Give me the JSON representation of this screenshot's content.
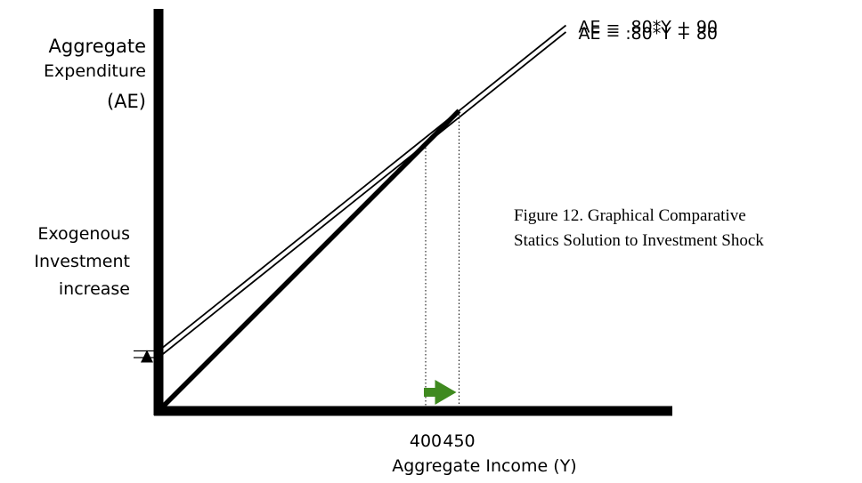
{
  "chart_data": {
    "type": "line",
    "title": "",
    "caption": [
      "Figure 12. Graphical Comparative",
      "Statics Solution to Investment Shock"
    ],
    "ylabel": [
      "Aggregate",
      "Expenditure",
      "(AE)"
    ],
    "xlabel": "Aggregate Income (Y)",
    "xlim": [
      0,
      600
    ],
    "ylim": [
      0,
      620
    ],
    "x_ticks": [
      {
        "value": 400,
        "label": "400"
      },
      {
        "value": 450,
        "label": "450"
      }
    ],
    "series": [
      {
        "name": "AE = .80*Y + 90",
        "intercept": 90,
        "slope": 0.8,
        "x": [
          0,
          600
        ],
        "y": [
          90,
          570
        ]
      },
      {
        "name": "AE = .80*Y + 80",
        "intercept": 80,
        "slope": 0.8,
        "x": [
          0,
          600
        ],
        "y": [
          80,
          560
        ]
      },
      {
        "name": "",
        "role": "45-degree line",
        "x": [
          0,
          450
        ],
        "y": [
          0,
          450
        ]
      }
    ],
    "equilibria": [
      {
        "x": 400,
        "y": 400
      },
      {
        "x": 450,
        "y": 450
      }
    ],
    "annotations": {
      "shock_label": [
        "Exogenous",
        "Investment",
        "increase"
      ],
      "shock_color": "#000000",
      "shift_arrow_color": "#3f8a1f"
    },
    "grid": false
  }
}
